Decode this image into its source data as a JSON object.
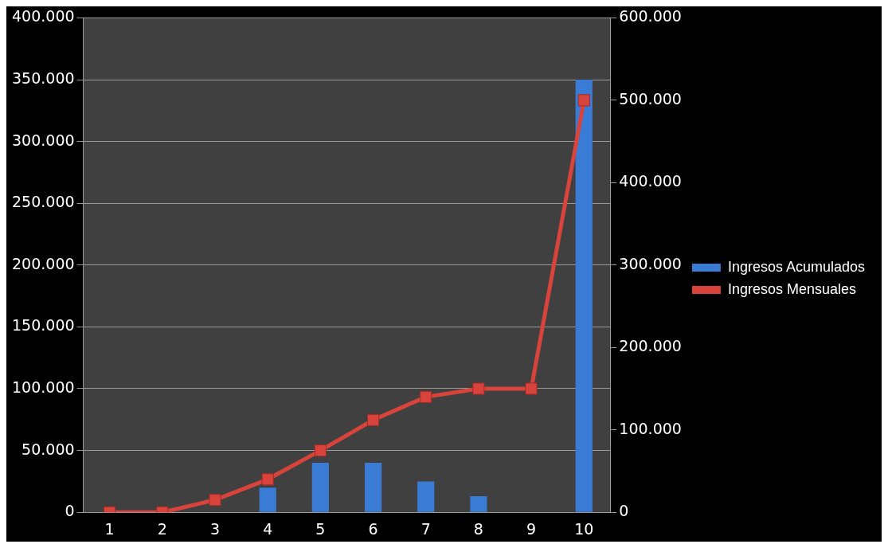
{
  "chart_data": {
    "type": "bar",
    "categories": [
      "1",
      "2",
      "3",
      "4",
      "5",
      "6",
      "7",
      "8",
      "9",
      "10"
    ],
    "series": [
      {
        "name": "Ingresos Acumulados",
        "color": "#3a7bd5",
        "values": [
          0,
          0,
          0,
          20000,
          40000,
          40000,
          25000,
          13000,
          0,
          350000
        ]
      },
      {
        "name": "Ingresos Mensuales",
        "type": "line",
        "axis": "y2",
        "color": "#d8433c",
        "values": [
          0,
          0,
          15000,
          40000,
          75000,
          112000,
          140000,
          150000,
          150000,
          500000
        ]
      }
    ],
    "ylim": [
      0,
      400000
    ],
    "yticks": [
      {
        "value": 0,
        "label": "0"
      },
      {
        "value": 50000,
        "label": "50.000"
      },
      {
        "value": 100000,
        "label": "100.000"
      },
      {
        "value": 150000,
        "label": "150.000"
      },
      {
        "value": 200000,
        "label": "200.000"
      },
      {
        "value": 250000,
        "label": "250.000"
      },
      {
        "value": 300000,
        "label": "300.000"
      },
      {
        "value": 350000,
        "label": "350.000"
      },
      {
        "value": 400000,
        "label": "400.000"
      }
    ],
    "y2lim": [
      0,
      600000
    ],
    "y2ticks": [
      {
        "value": 0,
        "label": "0"
      },
      {
        "value": 100000,
        "label": "100.000"
      },
      {
        "value": 200000,
        "label": "200.000"
      },
      {
        "value": 300000,
        "label": "300.000"
      },
      {
        "value": 400000,
        "label": "400.000"
      },
      {
        "value": 500000,
        "label": "500.000"
      },
      {
        "value": 600000,
        "label": "600.000"
      }
    ],
    "grid": "y",
    "legend": "right",
    "marker": "square"
  }
}
